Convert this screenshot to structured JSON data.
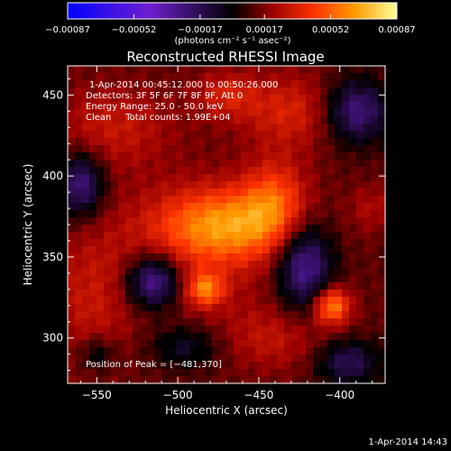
{
  "chart_data": {
    "type": "heatmap",
    "title": "Reconstructed RHESSI Image",
    "xlabel": "Heliocentric X (arcsec)",
    "ylabel": "Heliocentric Y (arcsec)",
    "xlim": [
      -568,
      -372
    ],
    "ylim": [
      272,
      468
    ],
    "x_ticks": [
      -550,
      -500,
      -450,
      -400
    ],
    "x_tick_labels": [
      "−550",
      "−500",
      "−450",
      "−400"
    ],
    "y_ticks": [
      300,
      350,
      400,
      450
    ],
    "y_tick_labels": [
      "300",
      "350",
      "400",
      "450"
    ],
    "grid": false,
    "colorbar": {
      "min": -0.00087,
      "max": 0.00087,
      "tick_values": [
        -0.00087,
        -0.00052,
        -0.00017,
        0.00017,
        0.00052,
        0.00087
      ],
      "tick_labels": [
        "−0.00087",
        "−0.00052",
        "−0.00017",
        "0.00017",
        "0.00052",
        "0.00087"
      ],
      "units_label": "(photons cm⁻² s⁻¹ asec⁻²)",
      "colors": [
        "#0000ff",
        "#6f1fcf",
        "#000000",
        "#9a0000",
        "#ff3300",
        "#ff9900",
        "#ffff99"
      ]
    },
    "annotations": [
      "1-Apr-2014 00:45:12.000 to 00:50:26.000",
      "Detectors: 3F 5F 6F 7F 8F 9F, Att 0",
      "Energy Range: 25.0 - 50.0 keV",
      "Clean     Total counts: 1.99E+04"
    ],
    "peak_label": "Position of Peak = [−481,370]",
    "peak_position": [
      -481,
      370
    ],
    "sources": [
      {
        "x": -470,
        "y": 370,
        "sx": 28,
        "sy": 16,
        "amp": 0.00045
      },
      {
        "x": -440,
        "y": 385,
        "sx": 14,
        "sy": 18,
        "amp": 0.0003
      },
      {
        "x": -483,
        "y": 330,
        "sx": 8,
        "sy": 7,
        "amp": 0.00038
      },
      {
        "x": -405,
        "y": 320,
        "sx": 8,
        "sy": 8,
        "amp": 0.00048
      },
      {
        "x": -500,
        "y": 350,
        "sx": 40,
        "sy": 30,
        "amp": 0.00015
      },
      {
        "x": -430,
        "y": 440,
        "sx": 22,
        "sy": 16,
        "amp": 0.00022
      },
      {
        "x": -540,
        "y": 430,
        "sx": 26,
        "sy": 18,
        "amp": 0.00018
      },
      {
        "x": -470,
        "y": 450,
        "sx": 14,
        "sy": 10,
        "amp": 0.0002
      },
      {
        "x": -555,
        "y": 320,
        "sx": 18,
        "sy": 30,
        "amp": 0.00014
      },
      {
        "x": -440,
        "y": 300,
        "sx": 24,
        "sy": 14,
        "amp": 0.00016
      },
      {
        "x": -380,
        "y": 380,
        "sx": 10,
        "sy": 10,
        "amp": 0.00012
      },
      {
        "x": -515,
        "y": 335,
        "sx": 12,
        "sy": 12,
        "amp": -0.00052
      },
      {
        "x": -560,
        "y": 395,
        "sx": 10,
        "sy": 14,
        "amp": -0.0004
      },
      {
        "x": -422,
        "y": 345,
        "sx": 12,
        "sy": 20,
        "amp": -0.00045
      },
      {
        "x": -390,
        "y": 440,
        "sx": 14,
        "sy": 14,
        "amp": -0.0004
      },
      {
        "x": -395,
        "y": 285,
        "sx": 14,
        "sy": 10,
        "amp": -0.0003
      },
      {
        "x": -495,
        "y": 295,
        "sx": 16,
        "sy": 10,
        "amp": -0.00022
      },
      {
        "x": -550,
        "y": 290,
        "sx": 8,
        "sy": 8,
        "amp": -0.0002
      }
    ]
  },
  "footer": {
    "timestamp": "1-Apr-2014 14:43"
  }
}
